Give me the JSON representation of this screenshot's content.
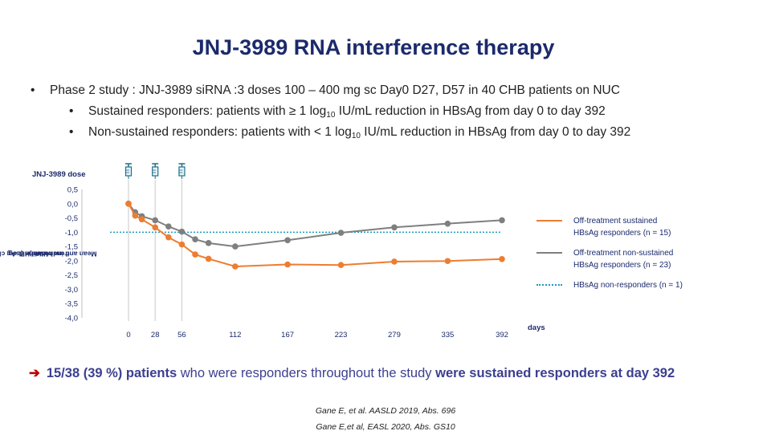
{
  "title": "JNJ-3989 RNA interference therapy",
  "bullets": {
    "main": "Phase 2 study  : JNJ-3989 siRNA :3 doses 100 – 400 mg sc Day0 D27, D57 in 40 CHB patients on NUC",
    "sub1": {
      "pre": "Sustained responders: patients with ≥ 1 log",
      "sub": "10",
      "post": " IU/mL reduction in HBsAg from day 0 to day 392"
    },
    "sub2": {
      "pre": "Non-sustained responders: patients with < 1 log",
      "sub": "10",
      "post": " IU/mL reduction in HBsAg from day 0 to day 392"
    }
  },
  "chart_data": {
    "type": "line",
    "dose_label": "JNJ-3989 dose",
    "dose_days": [
      0,
      28,
      56
    ],
    "ylabel_line1": "Mean and individual HBsAg change",
    "ylabel_line2": "from baseline (Log",
    "ylabel_sub": "10",
    "ylabel_end": " UI/ml)",
    "xlabel": "days",
    "ylim": [
      -4.0,
      0.5
    ],
    "y_ticks": [
      "0,5",
      "0,0",
      "-0,5",
      "-1,0",
      "-1,5",
      "-2,0",
      "-2,5",
      "-3,0",
      "-3,5",
      "-4,0"
    ],
    "x_ticks": [
      0,
      28,
      56,
      112,
      167,
      223,
      279,
      335,
      392
    ],
    "xlim": [
      0,
      392
    ],
    "series": [
      {
        "name": "Off-treatment sustained\nHBsAg responders (n = 15)",
        "color": "#ed7d31",
        "x": [
          0,
          7,
          14,
          28,
          42,
          56,
          70,
          84,
          112,
          167,
          223,
          279,
          335,
          392
        ],
        "y": [
          0.0,
          -0.42,
          -0.55,
          -0.83,
          -1.18,
          -1.43,
          -1.78,
          -1.93,
          -2.2,
          -2.13,
          -2.15,
          -2.03,
          -2.01,
          -1.94
        ]
      },
      {
        "name": "Off-treatment non-sustained\nHBsAg responders (n = 23)",
        "color": "#7f7f7f",
        "x": [
          0,
          7,
          14,
          28,
          42,
          56,
          70,
          84,
          112,
          167,
          223,
          279,
          335,
          392
        ],
        "y": [
          0.0,
          -0.3,
          -0.44,
          -0.58,
          -0.8,
          -0.98,
          -1.25,
          -1.38,
          -1.5,
          -1.28,
          -1.02,
          -0.83,
          -0.7,
          -0.58
        ]
      }
    ],
    "reference": {
      "name": "HBsAg non-responders (n = 1)",
      "color": "#1a9bc0",
      "y": -1.0
    }
  },
  "conclusion": {
    "arrow": "➔",
    "part1": "15/38 (39 %) patients",
    "part2": " who were responders throughout the study ",
    "part3": "were sustained responders at day 392"
  },
  "refs": [
    "Gane E, et al.  AASLD 2019, Abs. 696",
    "Gane E,et al, EASL 2020, Abs. GS10"
  ]
}
